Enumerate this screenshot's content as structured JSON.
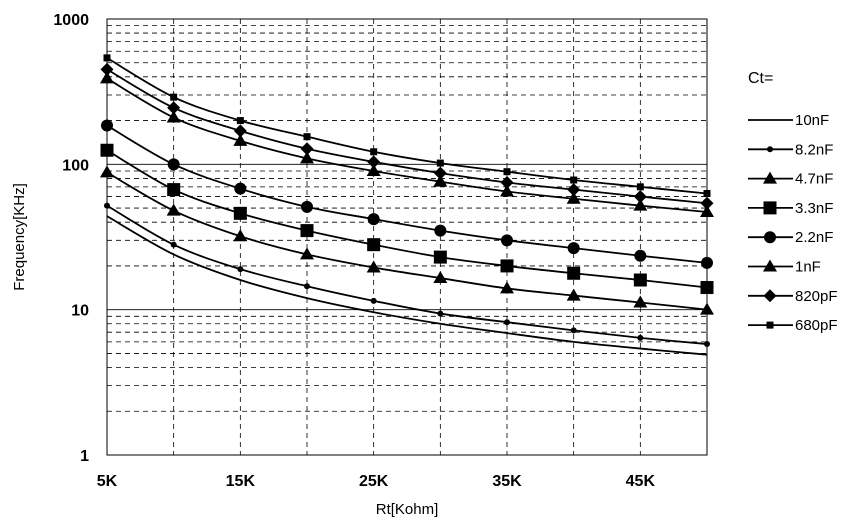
{
  "chart_data": {
    "type": "line",
    "xlabel": "Rt[Kohm]",
    "ylabel": "Frequency[KHz]",
    "x_scale": "linear",
    "y_scale": "log",
    "xlim": [
      5,
      50
    ],
    "ylim": [
      1,
      1000
    ],
    "grid": true,
    "x_tick_values": [
      5,
      15,
      25,
      35,
      45
    ],
    "x_tick_labels": [
      "5K",
      "15K",
      "25K",
      "35K",
      "45K"
    ],
    "y_tick_values": [
      1,
      10,
      100,
      1000
    ],
    "y_tick_labels": [
      "1",
      "10",
      "100",
      "1000"
    ],
    "legend_title": "Ct=",
    "legend_position": "right",
    "x": [
      5,
      10,
      15,
      20,
      25,
      30,
      35,
      40,
      45,
      50
    ],
    "series": [
      {
        "name": "10nF",
        "marker": "none",
        "values": [
          44,
          24,
          16,
          12,
          9.6,
          8.0,
          6.9,
          6.0,
          5.4,
          4.9
        ]
      },
      {
        "name": "8.2nF",
        "marker": "small-circle",
        "values": [
          52,
          28,
          19,
          14.5,
          11.5,
          9.4,
          8.2,
          7.2,
          6.4,
          5.8
        ]
      },
      {
        "name": "4.7nF",
        "marker": "triangle",
        "values": [
          88,
          48,
          32,
          24,
          19.5,
          16.5,
          14,
          12.5,
          11.2,
          10
        ]
      },
      {
        "name": "3.3nF",
        "marker": "square",
        "values": [
          125,
          67,
          46,
          35,
          28,
          23,
          20,
          17.8,
          16,
          14.2
        ]
      },
      {
        "name": "2.2nF",
        "marker": "circle",
        "values": [
          185,
          100,
          68,
          51,
          42,
          35,
          30,
          26.5,
          23.5,
          21
        ]
      },
      {
        "name": "1nF",
        "marker": "triangle",
        "values": [
          390,
          210,
          145,
          110,
          90,
          76,
          65,
          58,
          52,
          47
        ]
      },
      {
        "name": "820pF",
        "marker": "diamond",
        "values": [
          450,
          245,
          170,
          128,
          104,
          87,
          75,
          67,
          60,
          54
        ]
      },
      {
        "name": "680pF",
        "marker": "small-square",
        "values": [
          540,
          290,
          200,
          155,
          122,
          102,
          89,
          78,
          70,
          63
        ]
      }
    ]
  },
  "colors": {
    "line": "#000000",
    "grid": "#000000",
    "background": "#ffffff"
  }
}
